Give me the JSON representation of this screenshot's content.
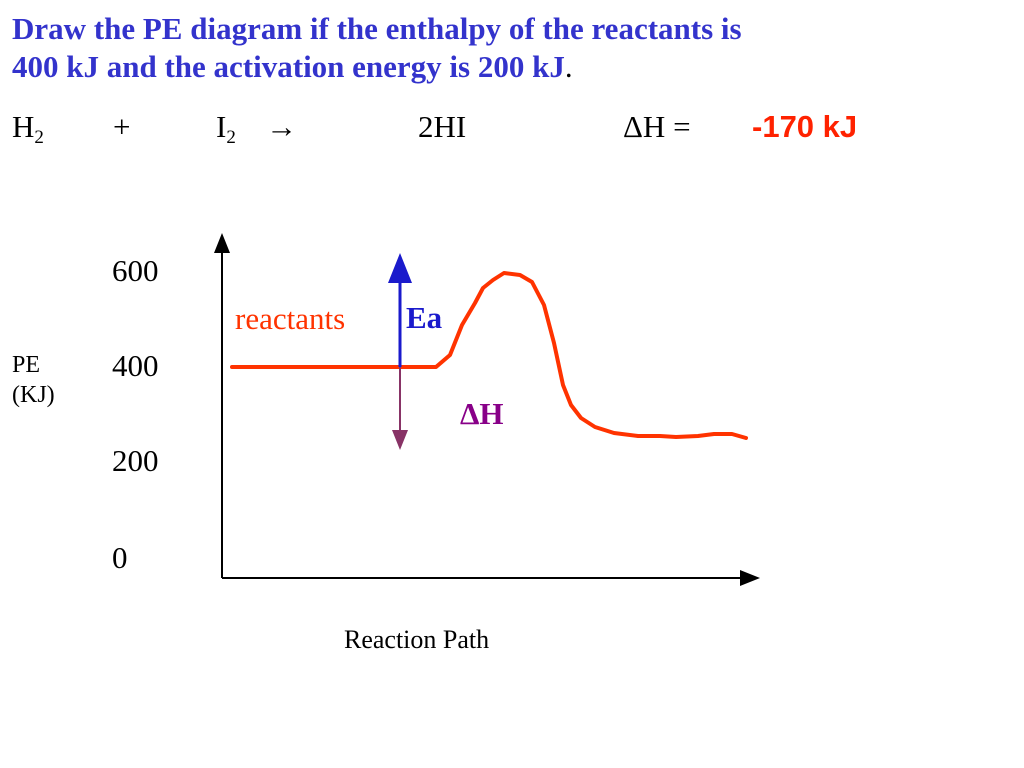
{
  "question": {
    "line1": "Draw the PE diagram if the enthalpy of the reactants is",
    "line2": "400 kJ and the activation energy is 200 kJ",
    "period": "."
  },
  "equation": {
    "reactant1": "H",
    "reactant1_sub": "2",
    "plus": "+",
    "reactant2": "I",
    "reactant2_sub": "2",
    "arrow": "→",
    "product": "2HI",
    "delta_h_label": "ΔH  =",
    "delta_h_value": "-170 kJ"
  },
  "diagram": {
    "y_ticks": [
      "600",
      "400",
      "200",
      "0"
    ],
    "y_label_line1": "PE",
    "y_label_line2": "(KJ)",
    "x_label": "Reaction Path",
    "label_reactants": "reactants",
    "label_ea": "Ea",
    "label_delta_h": "ΔH",
    "colors": {
      "curve": "#ff3300",
      "ea_arrow": "#1a1acc",
      "delta_h_arrow": "#883366",
      "reactants_text": "#ff3300",
      "ea_text": "#1a1acc",
      "delta_h_text": "#880088",
      "title": "#3333cc"
    }
  }
}
